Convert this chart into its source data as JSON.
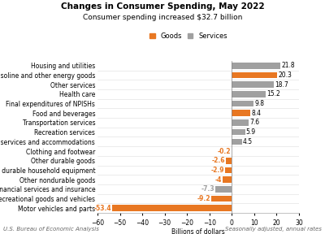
{
  "title": "Changes in Consumer Spending, May 2022",
  "subtitle": "Consumer spending increased $32.7 billion",
  "categories": [
    "Housing and utilities",
    "Gasoline and other energy goods",
    "Other services",
    "Health care",
    "Final expenditures of NPISHs",
    "Food and beverages",
    "Transportation services",
    "Recreation services",
    "Food services and accommodations",
    "Clothing and footwear",
    "Other durable goods",
    "Furnishings and durable household equipment",
    "Other nondurable goods",
    "Financial services and insurance",
    "Recreational goods and vehicles",
    "Motor vehicles and parts"
  ],
  "values": [
    21.8,
    20.3,
    18.7,
    15.2,
    9.8,
    8.4,
    7.6,
    5.9,
    4.5,
    -0.2,
    -2.6,
    -2.9,
    -4.0,
    -7.3,
    -9.2,
    -53.4
  ],
  "types": [
    "services",
    "goods",
    "services",
    "services",
    "services",
    "goods",
    "services",
    "services",
    "services",
    "goods",
    "goods",
    "goods",
    "goods",
    "services",
    "goods",
    "goods"
  ],
  "goods_color": "#E87722",
  "services_color": "#A0A0A0",
  "xlabel": "Billions of dollars",
  "footer_left": "U.S. Bureau of Economic Analysis",
  "footer_right": "Seasonally adjusted, annual rates",
  "xlim": [
    -60,
    30
  ],
  "background_color": "#ffffff",
  "title_fontsize": 7.5,
  "subtitle_fontsize": 6.5,
  "label_fontsize": 5.5,
  "tick_fontsize": 5.5,
  "footer_fontsize": 5.0,
  "legend_fontsize": 6.0
}
